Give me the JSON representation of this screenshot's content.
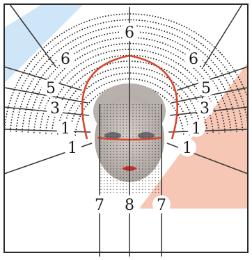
{
  "zone_labels": {
    "top": "6",
    "upper_left": "6",
    "upper_right": "6",
    "left_5": "5",
    "right_5": "5",
    "left_3": "3",
    "right_3": "3",
    "left_1a": "1",
    "right_1a": "1",
    "left_1b": "1",
    "right_1b": "1",
    "bottom_left": "7",
    "bottom_center": "8",
    "bottom_right": "7"
  },
  "colors": {
    "frame": "#2b2b2b",
    "spoke": "#3a3a3a",
    "dots": "#222222",
    "hairline_accent": "#d9442b",
    "watermark_orange": "#f6c7b5",
    "watermark_blue": "#cfe6f8",
    "face_skin": "#c9c0bb",
    "face_cap": "#b7b0ac"
  }
}
